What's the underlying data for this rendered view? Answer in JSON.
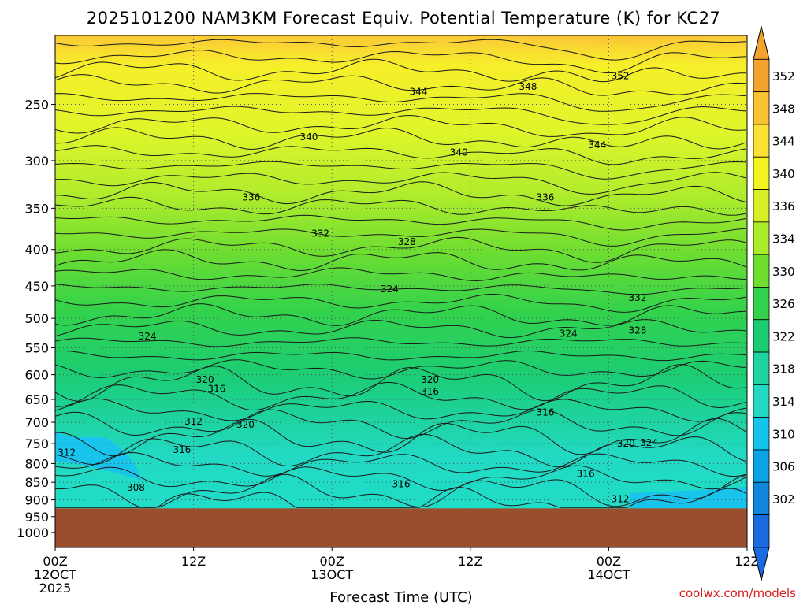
{
  "chart_data": {
    "type": "heatmap",
    "title": "2025101200 NAM3KM Forecast Equiv. Potential Temperature (K) for KC27",
    "xlabel": "Forecast Time (UTC)",
    "ylabel": "",
    "credit": "coolwx.com/models",
    "x_ticks": [
      {
        "hour": 0,
        "lines": [
          "00Z",
          "12OCT",
          "2025"
        ]
      },
      {
        "hour": 12,
        "lines": [
          "12Z"
        ]
      },
      {
        "hour": 24,
        "lines": [
          "00Z",
          "13OCT"
        ]
      },
      {
        "hour": 36,
        "lines": [
          "12Z"
        ]
      },
      {
        "hour": 48,
        "lines": [
          "00Z",
          "14OCT"
        ]
      },
      {
        "hour": 60,
        "lines": [
          "12Z"
        ]
      }
    ],
    "x_range_hours": [
      0,
      60
    ],
    "y_ticks": [
      250,
      300,
      350,
      400,
      450,
      500,
      550,
      600,
      650,
      700,
      750,
      800,
      850,
      900,
      950,
      1000
    ],
    "y_range_hpa": [
      1050,
      200
    ],
    "y_scale": "log-pressure",
    "colorbar": {
      "labels": [
        352,
        348,
        344,
        340,
        336,
        334,
        330,
        326,
        322,
        318,
        314,
        310,
        306,
        302
      ],
      "colors": [
        "#f2a22d",
        "#f9c231",
        "#fbe035",
        "#f3f322",
        "#d7f026",
        "#acea2c",
        "#6fde2f",
        "#33d24c",
        "#1ccc72",
        "#1ed49f",
        "#22d8c3",
        "#14c4ec",
        "#0aa3e6",
        "#0d86dc",
        "#1a6ae0"
      ]
    },
    "terrain": {
      "surface_pressure_hpa": 925,
      "color": "#9a4e2d"
    },
    "contour_interval_k": 2,
    "contour_labels": [
      {
        "value": 352,
        "hour": 49.0,
        "hpa": 228
      },
      {
        "value": 348,
        "hour": 41.0,
        "hpa": 236
      },
      {
        "value": 344,
        "hour": 31.5,
        "hpa": 240
      },
      {
        "value": 344,
        "hour": 47.0,
        "hpa": 285
      },
      {
        "value": 340,
        "hour": 22.0,
        "hpa": 278
      },
      {
        "value": 340,
        "hour": 35.0,
        "hpa": 292
      },
      {
        "value": 336,
        "hour": 17.0,
        "hpa": 338
      },
      {
        "value": 336,
        "hour": 42.5,
        "hpa": 338
      },
      {
        "value": 332,
        "hour": 23.0,
        "hpa": 380
      },
      {
        "value": 332,
        "hour": 50.5,
        "hpa": 468
      },
      {
        "value": 328,
        "hour": 30.5,
        "hpa": 390
      },
      {
        "value": 328,
        "hour": 50.5,
        "hpa": 520
      },
      {
        "value": 324,
        "hour": 29.0,
        "hpa": 455
      },
      {
        "value": 324,
        "hour": 8.0,
        "hpa": 530
      },
      {
        "value": 324,
        "hour": 44.5,
        "hpa": 525
      },
      {
        "value": 324,
        "hour": 51.5,
        "hpa": 748
      },
      {
        "value": 320,
        "hour": 13.0,
        "hpa": 610
      },
      {
        "value": 320,
        "hour": 32.5,
        "hpa": 610
      },
      {
        "value": 320,
        "hour": 16.5,
        "hpa": 705
      },
      {
        "value": 320,
        "hour": 49.5,
        "hpa": 750
      },
      {
        "value": 316,
        "hour": 14.0,
        "hpa": 628
      },
      {
        "value": 316,
        "hour": 32.5,
        "hpa": 634
      },
      {
        "value": 316,
        "hour": 42.5,
        "hpa": 678
      },
      {
        "value": 316,
        "hour": 11.0,
        "hpa": 765
      },
      {
        "value": 316,
        "hour": 30.0,
        "hpa": 855
      },
      {
        "value": 316,
        "hour": 46.0,
        "hpa": 827
      },
      {
        "value": 312,
        "hour": 12.0,
        "hpa": 698
      },
      {
        "value": 312,
        "hour": 1.0,
        "hpa": 772
      },
      {
        "value": 312,
        "hour": 49.0,
        "hpa": 898
      },
      {
        "value": 308,
        "hour": 7.0,
        "hpa": 865
      }
    ]
  }
}
